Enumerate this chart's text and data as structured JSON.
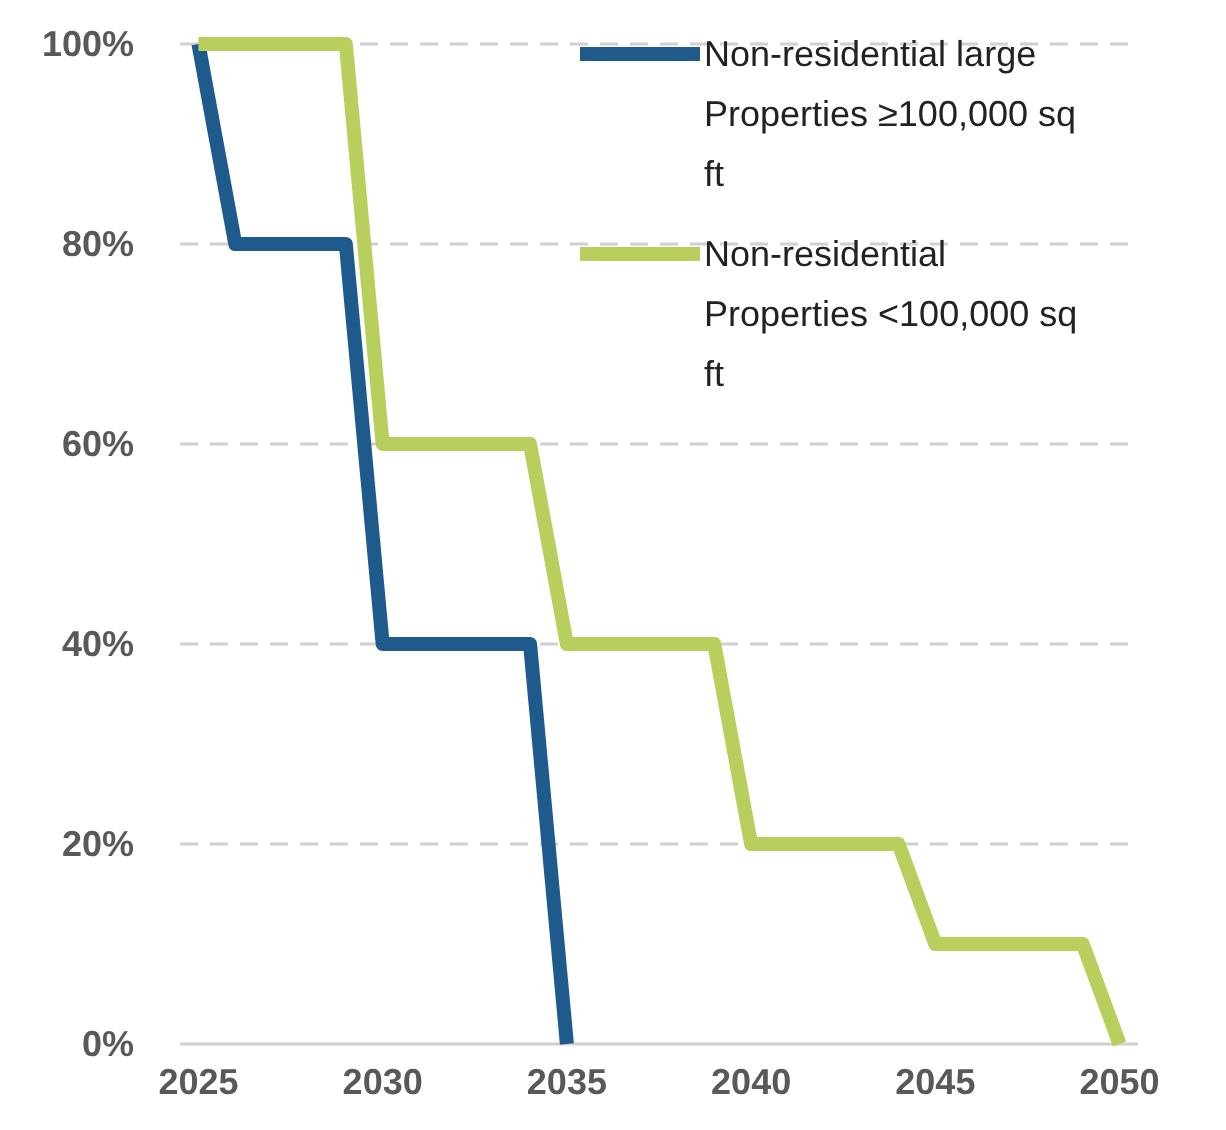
{
  "chart_data": {
    "type": "line",
    "x": [
      2025,
      2026,
      2029,
      2030,
      2034,
      2035,
      2039,
      2040,
      2044,
      2045,
      2049,
      2050
    ],
    "series": [
      {
        "name": "Non-residential large Properties ≥100,000 sq ft",
        "color": "#1f5a8c",
        "values": [
          100,
          80,
          80,
          40,
          40,
          0,
          null,
          null,
          null,
          null,
          null,
          null
        ]
      },
      {
        "name": "Non-residential Properties <100,000 sq ft",
        "color": "#b8cf5e",
        "values": [
          100,
          100,
          100,
          60,
          60,
          40,
          40,
          20,
          20,
          10,
          10,
          0
        ]
      }
    ],
    "xlim": [
      2024.5,
      2050.5
    ],
    "xticks": [
      2025,
      2030,
      2035,
      2040,
      2045,
      2050
    ],
    "ylim": [
      0,
      100
    ],
    "yticks": [
      {
        "value": 0,
        "label": "0%"
      },
      {
        "value": 20,
        "label": "20%"
      },
      {
        "value": 40,
        "label": "40%"
      },
      {
        "value": 60,
        "label": "60%"
      },
      {
        "value": 80,
        "label": "80%"
      },
      {
        "value": 100,
        "label": "100%"
      }
    ],
    "grid": "y",
    "legend": "top right",
    "marker": "none",
    "line_style": "solid"
  }
}
